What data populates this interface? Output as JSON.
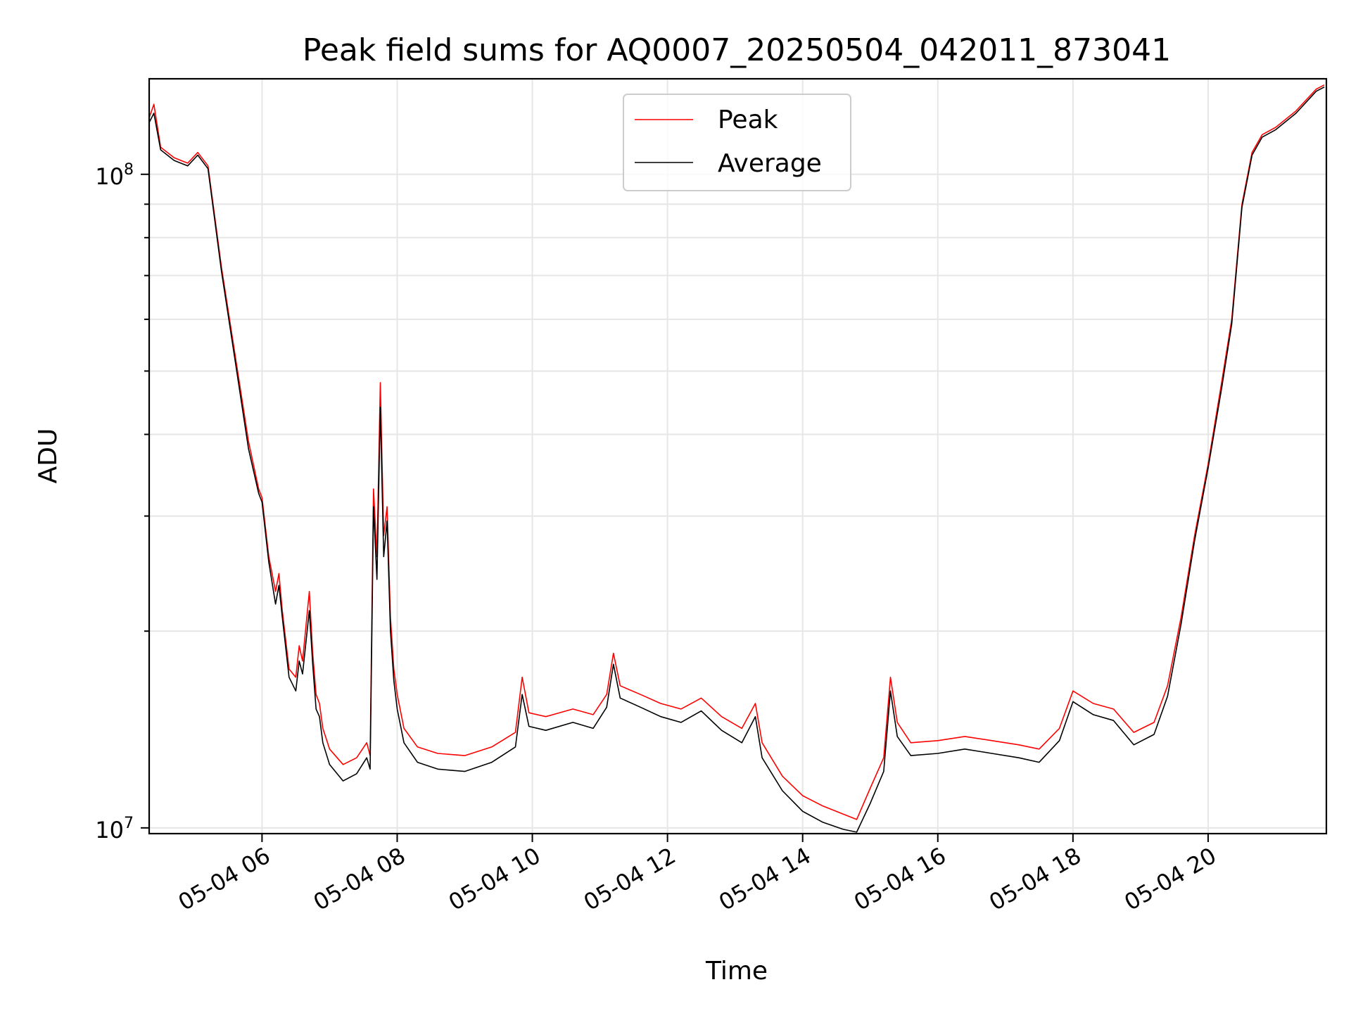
{
  "chart_data": {
    "type": "line",
    "title": "Peak field sums for AQ0007_20250504_042011_873041",
    "xlabel": "Time",
    "ylabel": "ADU",
    "x_range": [
      "05-04 04:20",
      "05-04 21:45"
    ],
    "y_range": [
      9800000,
      140000000
    ],
    "y_scale": "log",
    "grid": true,
    "legend_position": "top-center",
    "x_tick_labels": [
      "05-04 06",
      "05-04 08",
      "05-04 10",
      "05-04 12",
      "05-04 14",
      "05-04 16",
      "05-04 18",
      "05-04 20"
    ],
    "x_tick_hours": [
      6,
      8,
      10,
      12,
      14,
      16,
      18,
      20
    ],
    "y_tick_labels": [
      {
        "value": 10000000,
        "base": "10",
        "exp": "7"
      },
      {
        "value": 100000000,
        "base": "10",
        "exp": "8"
      }
    ],
    "y_minor_ticks": [
      20000000,
      30000000,
      40000000,
      50000000,
      60000000,
      70000000,
      80000000,
      90000000
    ],
    "series": [
      {
        "name": "Peak",
        "color": "#ff0000",
        "x_hours": [
          4.33,
          4.4,
          4.5,
          4.7,
          4.9,
          5.05,
          5.2,
          5.4,
          5.6,
          5.8,
          5.95,
          6.0,
          6.1,
          6.2,
          6.25,
          6.3,
          6.4,
          6.5,
          6.55,
          6.6,
          6.7,
          6.75,
          6.8,
          6.85,
          6.9,
          7.0,
          7.2,
          7.4,
          7.55,
          7.6,
          7.65,
          7.7,
          7.75,
          7.8,
          7.85,
          7.9,
          7.95,
          8.0,
          8.1,
          8.3,
          8.6,
          9.0,
          9.4,
          9.75,
          9.85,
          9.95,
          10.2,
          10.6,
          10.9,
          11.1,
          11.2,
          11.3,
          11.6,
          11.9,
          12.2,
          12.5,
          12.8,
          13.1,
          13.3,
          13.4,
          13.7,
          14.0,
          14.3,
          14.6,
          14.8,
          15.0,
          15.2,
          15.3,
          15.4,
          15.6,
          16.0,
          16.4,
          16.8,
          17.2,
          17.5,
          17.8,
          18.0,
          18.3,
          18.6,
          18.9,
          19.2,
          19.4,
          19.6,
          19.8,
          20.0,
          20.2,
          20.35,
          20.5,
          20.65,
          20.8,
          21.0,
          21.3,
          21.6,
          21.72
        ],
        "values": [
          122000000,
          128000000,
          110000000,
          106000000,
          104000000,
          108000000,
          103000000,
          72000000,
          53000000,
          39000000,
          33000000,
          32000000,
          26000000,
          23000000,
          24500000,
          21500000,
          17500000,
          17000000,
          19000000,
          18000000,
          23000000,
          18500000,
          16000000,
          15500000,
          14200000,
          13200000,
          12500000,
          12800000,
          13500000,
          12900000,
          33000000,
          26000000,
          48000000,
          28000000,
          31000000,
          21000000,
          17500000,
          16000000,
          14200000,
          13300000,
          13000000,
          12900000,
          13300000,
          14000000,
          17000000,
          15000000,
          14800000,
          15200000,
          14900000,
          16000000,
          18500000,
          16500000,
          16000000,
          15500000,
          15200000,
          15800000,
          14800000,
          14200000,
          15500000,
          13500000,
          12000000,
          11200000,
          10800000,
          10500000,
          10300000,
          11500000,
          12800000,
          17000000,
          14500000,
          13500000,
          13600000,
          13800000,
          13600000,
          13400000,
          13200000,
          14200000,
          16200000,
          15500000,
          15200000,
          14000000,
          14500000,
          16500000,
          21000000,
          28000000,
          36000000,
          48000000,
          60000000,
          90000000,
          108000000,
          115000000,
          118000000,
          125000000,
          135000000,
          137000000
        ]
      },
      {
        "name": "Average",
        "color": "#000000",
        "x_hours": [
          4.33,
          4.4,
          4.5,
          4.7,
          4.9,
          5.05,
          5.2,
          5.4,
          5.6,
          5.8,
          5.95,
          6.0,
          6.1,
          6.2,
          6.25,
          6.3,
          6.4,
          6.5,
          6.55,
          6.6,
          6.7,
          6.75,
          6.8,
          6.85,
          6.9,
          7.0,
          7.2,
          7.4,
          7.55,
          7.6,
          7.65,
          7.7,
          7.75,
          7.8,
          7.85,
          7.9,
          7.95,
          8.0,
          8.1,
          8.3,
          8.6,
          9.0,
          9.4,
          9.75,
          9.85,
          9.95,
          10.2,
          10.6,
          10.9,
          11.1,
          11.2,
          11.3,
          11.6,
          11.9,
          12.2,
          12.5,
          12.8,
          13.1,
          13.3,
          13.4,
          13.7,
          14.0,
          14.3,
          14.6,
          14.8,
          15.0,
          15.2,
          15.3,
          15.4,
          15.6,
          16.0,
          16.4,
          16.8,
          17.2,
          17.5,
          17.8,
          18.0,
          18.3,
          18.6,
          18.9,
          19.2,
          19.4,
          19.6,
          19.8,
          20.0,
          20.2,
          20.35,
          20.5,
          20.65,
          20.8,
          21.0,
          21.3,
          21.6,
          21.72
        ],
        "values": [
          120000000,
          124000000,
          109000000,
          105000000,
          103000000,
          107000000,
          102000000,
          71000000,
          52000000,
          38000000,
          32500000,
          31500000,
          25500000,
          22000000,
          23500000,
          21000000,
          17000000,
          16200000,
          18000000,
          17200000,
          21500000,
          17800000,
          15200000,
          14800000,
          13500000,
          12500000,
          11800000,
          12100000,
          12800000,
          12300000,
          31000000,
          24000000,
          44000000,
          26000000,
          29500000,
          20000000,
          16800000,
          15200000,
          13500000,
          12600000,
          12300000,
          12200000,
          12600000,
          13300000,
          16000000,
          14300000,
          14100000,
          14500000,
          14200000,
          15300000,
          17800000,
          15800000,
          15300000,
          14800000,
          14500000,
          15100000,
          14100000,
          13500000,
          14800000,
          12800000,
          11400000,
          10600000,
          10200000,
          9950000,
          9850000,
          10900000,
          12200000,
          16200000,
          13800000,
          12900000,
          13000000,
          13200000,
          13000000,
          12800000,
          12600000,
          13600000,
          15600000,
          14900000,
          14600000,
          13400000,
          13900000,
          15900000,
          20500000,
          27500000,
          35500000,
          47000000,
          59000000,
          89000000,
          107000000,
          114000000,
          117000000,
          124000000,
          134000000,
          136000000
        ]
      }
    ]
  }
}
